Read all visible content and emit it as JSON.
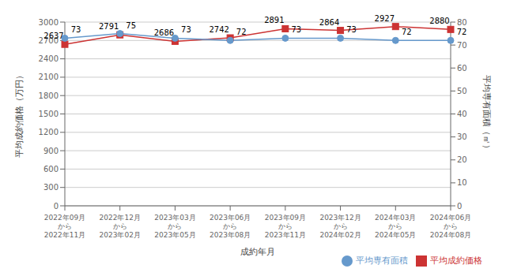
{
  "chart_data": {
    "type": "line",
    "categories": [
      "2022年09月\nから\n2022年11月",
      "2022年12月\nから\n2023年02月",
      "2023年03月\nから\n2023年05月",
      "2023年06月\nから\n2023年08月",
      "2023年09月\nから\n2023年11月",
      "2023年12月\nから\n2024年02月",
      "2024年03月\nから\n2024年05月",
      "2024年06月\nから\n2024年08月"
    ],
    "series": [
      {
        "name": "平均成約価格",
        "color": "#cc3333",
        "marker": "square",
        "values": [
          2637,
          2791,
          2686,
          2742,
          2891,
          2864,
          2927,
          2880
        ]
      },
      {
        "name": "平均専有面積",
        "color": "#6699cc",
        "marker": "circle",
        "axis": "y2",
        "values": [
          73,
          75,
          73,
          72,
          73,
          73,
          72,
          72
        ]
      }
    ],
    "xlabel": "成約年月",
    "ylabel": "平均成約価格（万円）",
    "y2label": "平均専有面積（㎡）",
    "ylim": [
      0,
      3000
    ],
    "yticks": [
      0,
      300,
      600,
      900,
      1200,
      1500,
      1800,
      2100,
      2400,
      2700,
      3000
    ],
    "y2lim": [
      0,
      80
    ],
    "y2ticks": [
      0,
      10,
      20,
      30,
      40,
      50,
      60,
      70,
      80
    ],
    "grid": true,
    "legend": "lower right",
    "data_labels": true
  }
}
